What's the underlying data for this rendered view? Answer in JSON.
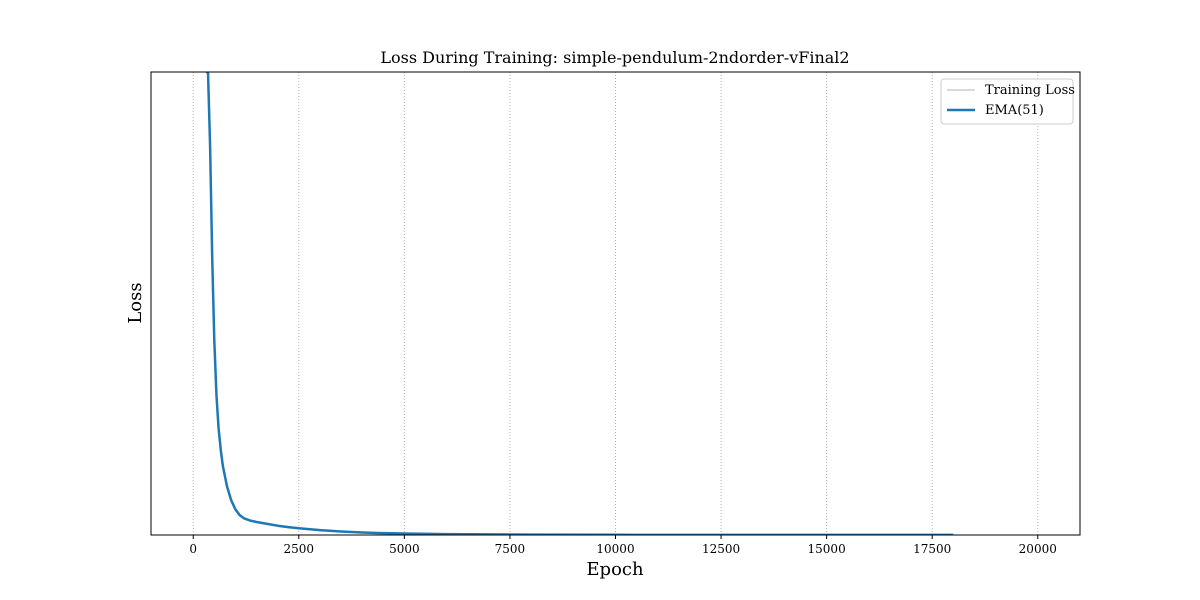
{
  "chart_data": {
    "type": "line",
    "title": "Loss During Training: simple-pendulum-2ndorder-vFinal2",
    "xlabel": "Epoch",
    "ylabel": "Loss",
    "xlim": [
      -1000,
      21000
    ],
    "ylim": [
      0,
      100
    ],
    "xticks": [
      0,
      2500,
      5000,
      7500,
      10000,
      12500,
      15000,
      17500,
      20000
    ],
    "grid": "x-dotted",
    "legend_position": "top-right",
    "series": [
      {
        "name": "Training Loss",
        "color": "#d9d9d9",
        "x": [],
        "y": []
      },
      {
        "name": "EMA(51)",
        "color": "#1f77b4",
        "x": [
          300,
          350,
          400,
          450,
          500,
          550,
          600,
          650,
          700,
          800,
          900,
          1000,
          1100,
          1200,
          1350,
          1500,
          1750,
          2000,
          2250,
          2500,
          3000,
          3500,
          4000,
          4500,
          5000,
          6000,
          7000,
          8000,
          10000,
          12500,
          15000,
          17500,
          18000
        ],
        "y": [
          100,
          100,
          84,
          60,
          42,
          30,
          23,
          18.5,
          15,
          10.5,
          7.5,
          5.5,
          4.3,
          3.6,
          3.1,
          2.8,
          2.4,
          2.0,
          1.7,
          1.45,
          1.05,
          0.75,
          0.55,
          0.42,
          0.32,
          0.2,
          0.13,
          0.09,
          0.05,
          0.03,
          0.02,
          0.015,
          0.015
        ]
      }
    ]
  }
}
